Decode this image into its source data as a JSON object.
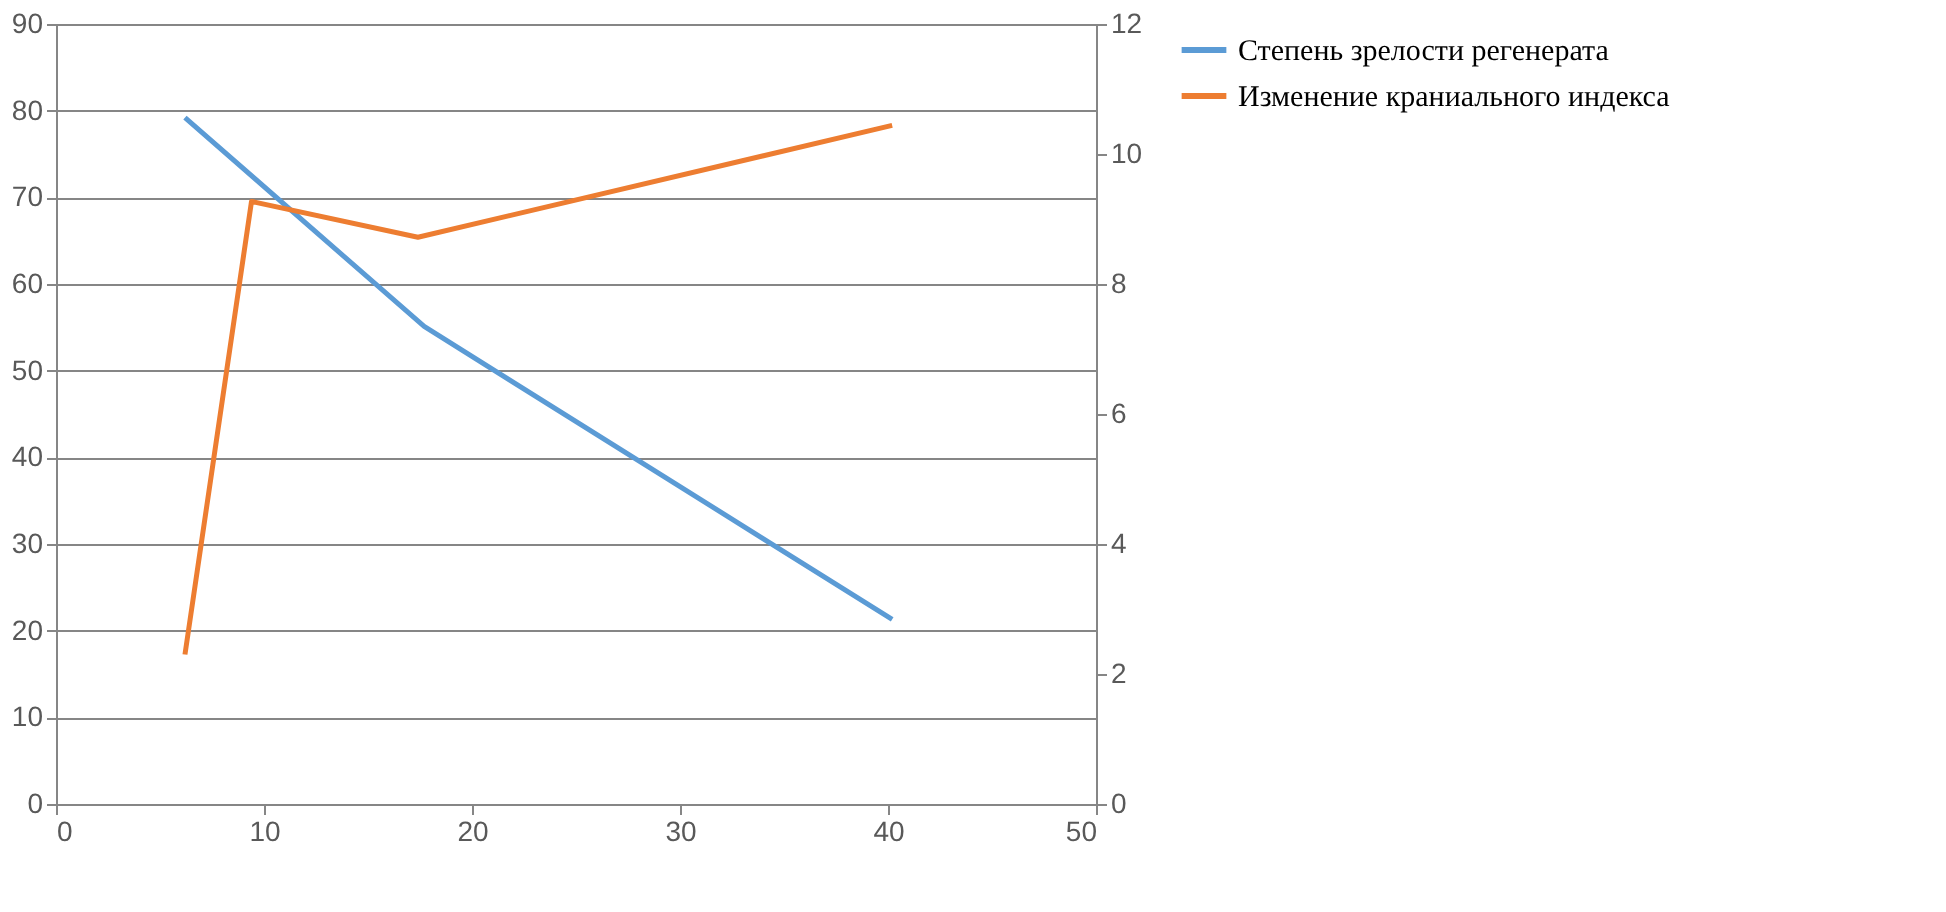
{
  "chart_data": {
    "type": "line",
    "xlim": [
      0,
      50
    ],
    "xticks": [
      0,
      10,
      20,
      30,
      40,
      50
    ],
    "ylim": [
      0,
      90
    ],
    "yticks": [
      0,
      10,
      20,
      30,
      40,
      50,
      60,
      70,
      80,
      90
    ],
    "y2lim": [
      0,
      12
    ],
    "y2ticks": [
      0,
      2,
      4,
      6,
      8,
      10,
      12
    ],
    "grid": "y",
    "legend": "right",
    "marker": "none",
    "line_style": "solid",
    "series": [
      {
        "name": "Степень зрелости регенерата",
        "color": "#5b9bd5",
        "x": [
          6.2,
          17.7,
          40.2
        ],
        "values": [
          79.2,
          55.1,
          21.3
        ]
      },
      {
        "name": "Изменение краниального индекса",
        "color": "#ed7d31",
        "axis": "y2",
        "x": [
          6.2,
          9.4,
          17.4,
          40.2
        ],
        "values": [
          2.3,
          9.27,
          8.72,
          10.44
        ]
      }
    ]
  }
}
